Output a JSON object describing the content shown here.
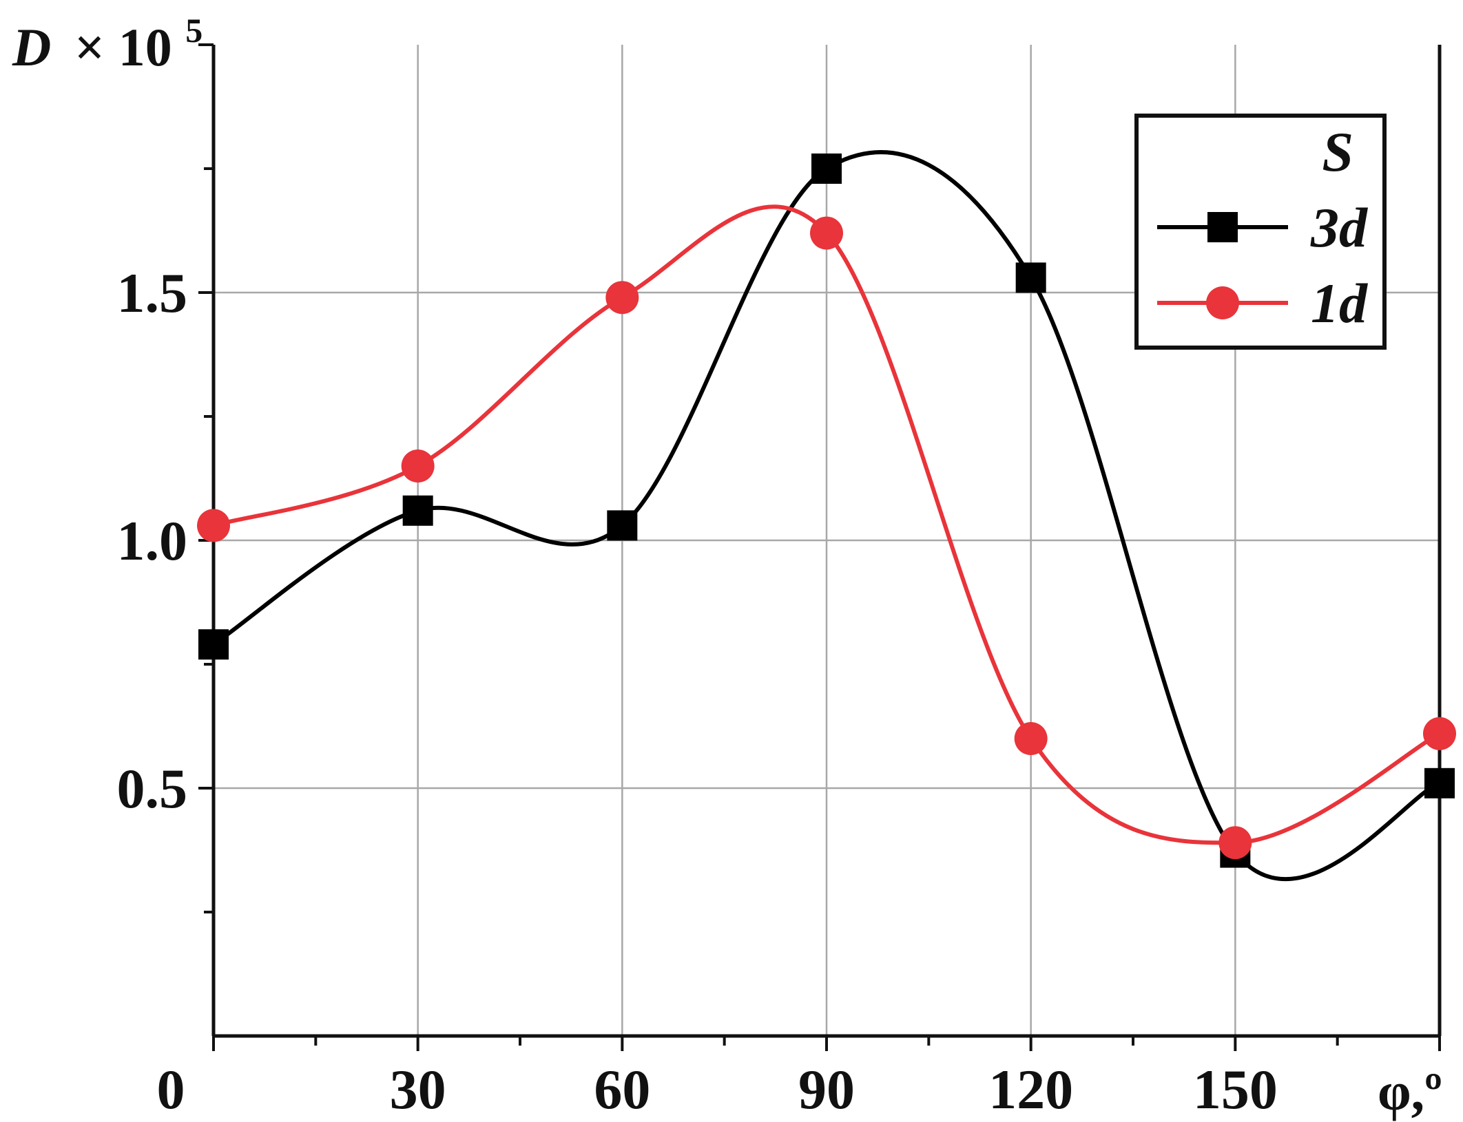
{
  "chart_data": {
    "type": "line",
    "ylabel_var": "D",
    "ylabel_rest": "× 10",
    "ylabel_exp": "5",
    "xlabel": "φ,º",
    "xlim": [
      0,
      180
    ],
    "ylim": [
      0,
      2.0
    ],
    "x_ticks": [
      0,
      30,
      60,
      90,
      120,
      150
    ],
    "x_tick_labels": [
      "0",
      "30",
      "60",
      "90",
      "120",
      "150"
    ],
    "y_ticks": [
      0.5,
      1.0,
      1.5
    ],
    "y_tick_labels": [
      "0.5",
      "1.0",
      "1.5"
    ],
    "grid": true,
    "legend": {
      "title": "S",
      "placement": "top-right"
    },
    "series": [
      {
        "name": "3d",
        "color": "#000000",
        "marker": "square",
        "x": [
          0,
          30,
          60,
          90,
          120,
          150,
          180
        ],
        "y": [
          0.79,
          1.06,
          1.03,
          1.75,
          1.53,
          0.37,
          0.51
        ]
      },
      {
        "name": "1d",
        "color": "#e8343a",
        "marker": "circle",
        "x": [
          0,
          30,
          60,
          90,
          120,
          150,
          180
        ],
        "y": [
          1.03,
          1.15,
          1.49,
          1.62,
          0.6,
          0.39,
          0.61
        ]
      }
    ]
  }
}
